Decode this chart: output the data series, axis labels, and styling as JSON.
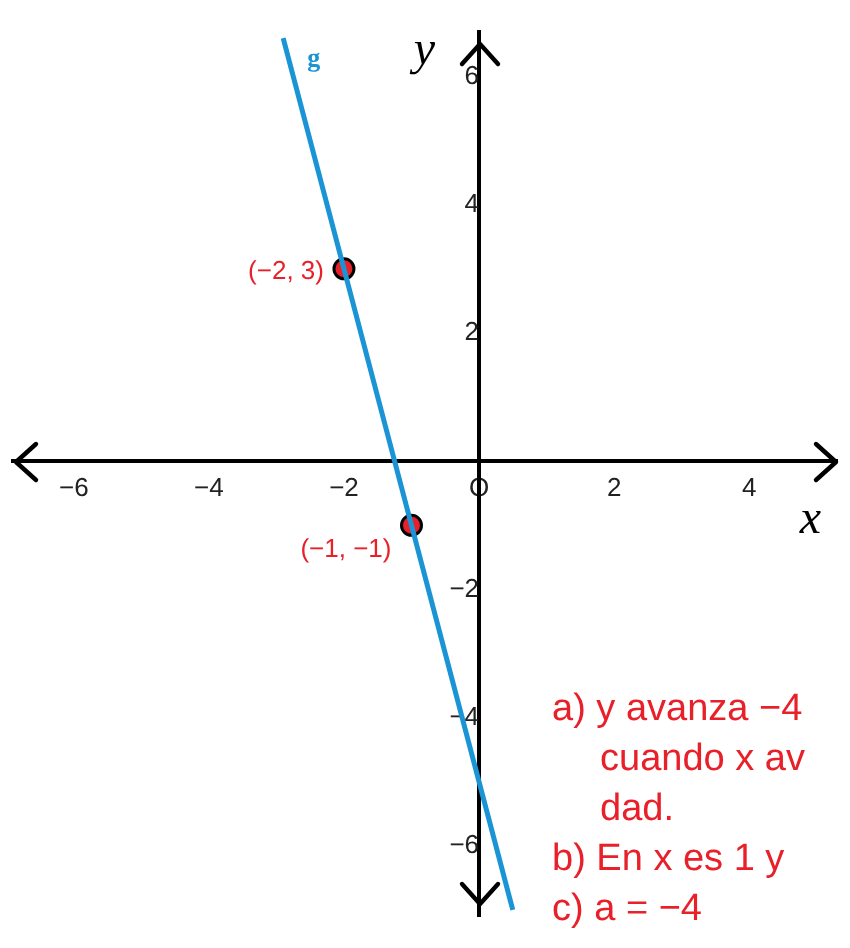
{
  "chart_data": {
    "type": "line",
    "xlabel": "x",
    "ylabel": "y",
    "xlim": [
      -6.9,
      5.3
    ],
    "ylim": [
      -7.1,
      6.7
    ],
    "xticks": [
      {
        "value": -6,
        "label": "−6"
      },
      {
        "value": -4,
        "label": "−4"
      },
      {
        "value": -2,
        "label": "−2"
      },
      {
        "value": 0,
        "label": "O"
      },
      2,
      4
    ],
    "yticks": [
      {
        "value": -6,
        "label": "−6"
      },
      {
        "value": -4,
        "label": "−4"
      },
      {
        "value": -2,
        "label": "−2"
      },
      2,
      4,
      6
    ],
    "grid": false,
    "legend": false,
    "series": [
      {
        "name": "g",
        "type": "line",
        "color": "#1a94d4",
        "marker": "none",
        "x": [
          -2.9,
          0.5
        ],
        "values": [
          6.6,
          -7
        ]
      },
      {
        "type": "scatter",
        "color": "#e8202a",
        "marker": "circle",
        "x": [
          -2,
          -1
        ],
        "values": [
          3,
          -1
        ]
      }
    ],
    "annotations": [
      {
        "text": "(−2, 3)",
        "x": -2,
        "y": 3
      },
      {
        "text": "(−1, −1)",
        "x": -1,
        "y": -1
      },
      "a) y avanza −4",
      "cuando x av",
      "dad.",
      "b) En x es 1 y",
      "c) a = −4"
    ]
  }
}
